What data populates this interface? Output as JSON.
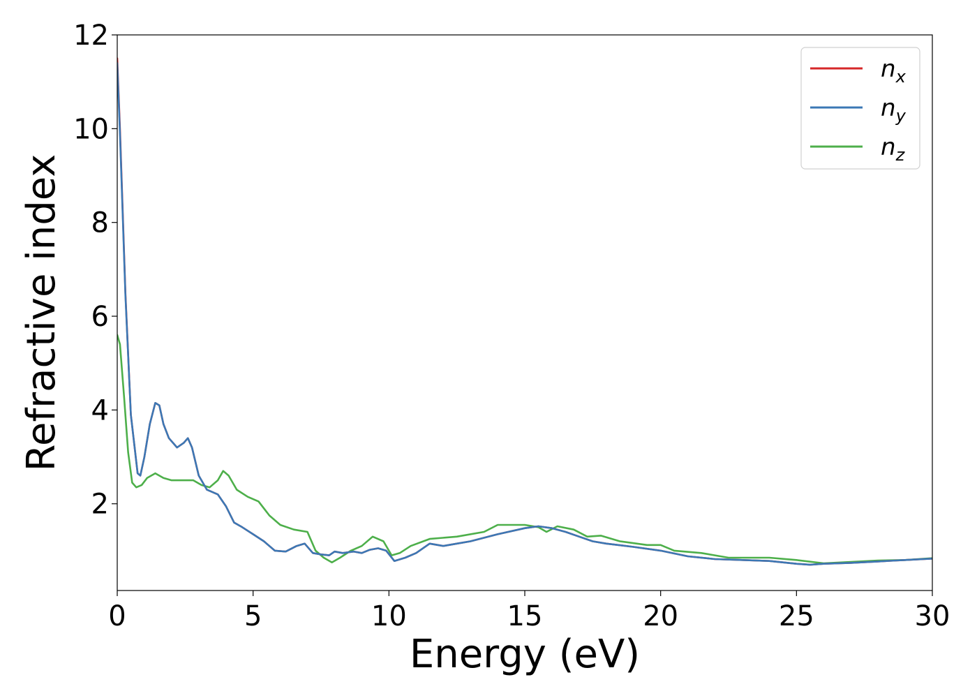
{
  "chart_data": {
    "type": "line",
    "xlabel": "Energy (eV)",
    "ylabel": "Refractive index",
    "xlim": [
      0,
      30
    ],
    "ylim": [
      0.15,
      12
    ],
    "xticks": [
      0,
      5,
      10,
      15,
      20,
      25,
      30
    ],
    "yticks": [
      2,
      4,
      6,
      8,
      10,
      12
    ],
    "grid": false,
    "legend_position": "top-right",
    "colors": {
      "nx": "#d62728",
      "ny": "#3b78b5",
      "nz": "#4daf4a"
    },
    "series": [
      {
        "name": "n_x",
        "legend_base": "n",
        "legend_sub": "x",
        "color": "#d62728",
        "x": [
          0,
          0.1,
          0.3,
          0.5,
          0.75,
          0.85,
          1.0,
          1.2,
          1.4,
          1.55,
          1.7,
          1.9,
          2.2,
          2.45,
          2.6,
          2.75,
          3.0,
          3.3,
          3.7,
          4.0,
          4.3,
          4.6,
          5.0,
          5.4,
          5.8,
          6.2,
          6.6,
          6.9,
          7.2,
          7.5,
          7.8,
          8.0,
          8.3,
          8.7,
          9.0,
          9.3,
          9.6,
          9.9,
          10.2,
          10.6,
          11.0,
          11.5,
          12.0,
          12.5,
          13.0,
          14.0,
          15.0,
          15.5,
          16.0,
          16.5,
          17.0,
          17.5,
          18.0,
          19.0,
          20.0,
          21.0,
          22.0,
          23.0,
          24.0,
          25.0,
          25.5,
          26.0,
          27.0,
          28.0,
          29.0,
          30.0
        ],
        "y": [
          11.5,
          10.0,
          6.5,
          3.9,
          2.65,
          2.6,
          3.0,
          3.7,
          4.15,
          4.1,
          3.7,
          3.4,
          3.2,
          3.3,
          3.4,
          3.2,
          2.6,
          2.3,
          2.2,
          1.95,
          1.6,
          1.5,
          1.35,
          1.2,
          1.0,
          0.98,
          1.1,
          1.15,
          0.95,
          0.92,
          0.9,
          0.98,
          0.95,
          0.98,
          0.95,
          1.02,
          1.05,
          1.0,
          0.78,
          0.85,
          0.95,
          1.15,
          1.1,
          1.15,
          1.2,
          1.35,
          1.48,
          1.52,
          1.48,
          1.4,
          1.3,
          1.2,
          1.15,
          1.08,
          1.0,
          0.88,
          0.82,
          0.8,
          0.78,
          0.72,
          0.7,
          0.72,
          0.74,
          0.77,
          0.8,
          0.83
        ]
      },
      {
        "name": "n_y",
        "legend_base": "n",
        "legend_sub": "y",
        "color": "#3b78b5",
        "x": [
          0,
          0.1,
          0.3,
          0.5,
          0.75,
          0.85,
          1.0,
          1.2,
          1.4,
          1.55,
          1.7,
          1.9,
          2.2,
          2.45,
          2.6,
          2.75,
          3.0,
          3.3,
          3.7,
          4.0,
          4.3,
          4.6,
          5.0,
          5.4,
          5.8,
          6.2,
          6.6,
          6.9,
          7.2,
          7.5,
          7.8,
          8.0,
          8.3,
          8.7,
          9.0,
          9.3,
          9.6,
          9.9,
          10.2,
          10.6,
          11.0,
          11.5,
          12.0,
          12.5,
          13.0,
          14.0,
          15.0,
          15.5,
          16.0,
          16.5,
          17.0,
          17.5,
          18.0,
          19.0,
          20.0,
          21.0,
          22.0,
          23.0,
          24.0,
          25.0,
          25.5,
          26.0,
          27.0,
          28.0,
          29.0,
          30.0
        ],
        "y": [
          11.4,
          9.9,
          6.45,
          3.9,
          2.65,
          2.6,
          3.0,
          3.7,
          4.15,
          4.1,
          3.7,
          3.4,
          3.2,
          3.3,
          3.4,
          3.2,
          2.6,
          2.3,
          2.2,
          1.95,
          1.6,
          1.5,
          1.35,
          1.2,
          1.0,
          0.98,
          1.1,
          1.15,
          0.95,
          0.92,
          0.9,
          0.98,
          0.95,
          0.98,
          0.95,
          1.02,
          1.05,
          1.0,
          0.78,
          0.85,
          0.95,
          1.15,
          1.1,
          1.15,
          1.2,
          1.35,
          1.48,
          1.52,
          1.48,
          1.4,
          1.3,
          1.2,
          1.15,
          1.08,
          1.0,
          0.88,
          0.82,
          0.8,
          0.78,
          0.72,
          0.7,
          0.72,
          0.74,
          0.77,
          0.8,
          0.83
        ]
      },
      {
        "name": "n_z",
        "legend_base": "n",
        "legend_sub": "z",
        "color": "#4daf4a",
        "x": [
          0,
          0.1,
          0.25,
          0.4,
          0.55,
          0.7,
          0.9,
          1.1,
          1.4,
          1.7,
          2.0,
          2.5,
          2.8,
          3.1,
          3.4,
          3.7,
          3.9,
          4.1,
          4.4,
          4.8,
          5.2,
          5.6,
          6.0,
          6.5,
          7.0,
          7.3,
          7.6,
          7.9,
          8.2,
          8.6,
          9.0,
          9.4,
          9.8,
          10.1,
          10.4,
          10.8,
          11.5,
          12.5,
          13.5,
          14.0,
          14.5,
          15.0,
          15.5,
          15.8,
          16.2,
          16.8,
          17.3,
          17.8,
          18.5,
          19.5,
          20.0,
          20.5,
          21.5,
          22.5,
          23.5,
          24.0,
          25.0,
          26.0,
          27.0,
          28.0,
          29.0,
          30.0
        ],
        "y": [
          5.6,
          5.4,
          4.3,
          3.1,
          2.45,
          2.35,
          2.4,
          2.55,
          2.65,
          2.55,
          2.5,
          2.5,
          2.5,
          2.4,
          2.35,
          2.5,
          2.7,
          2.6,
          2.3,
          2.15,
          2.05,
          1.75,
          1.55,
          1.45,
          1.4,
          1.0,
          0.85,
          0.75,
          0.85,
          1.0,
          1.1,
          1.3,
          1.2,
          0.9,
          0.95,
          1.1,
          1.25,
          1.3,
          1.4,
          1.55,
          1.55,
          1.55,
          1.5,
          1.4,
          1.52,
          1.45,
          1.3,
          1.32,
          1.2,
          1.12,
          1.12,
          1.0,
          0.95,
          0.85,
          0.85,
          0.85,
          0.8,
          0.73,
          0.76,
          0.79,
          0.8,
          0.84
        ]
      }
    ]
  }
}
